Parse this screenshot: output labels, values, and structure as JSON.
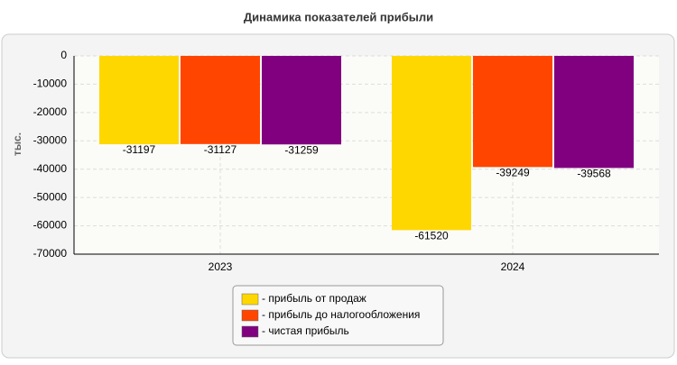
{
  "chart_data": {
    "type": "bar",
    "title": "Динамика показателей прибыли",
    "y_label": "тыс.",
    "categories": [
      "2023",
      "2024"
    ],
    "series": [
      {
        "name": "- прибыль от продаж",
        "color": "#ffd700",
        "values": [
          -31197,
          -61520
        ]
      },
      {
        "name": "- прибыль до налогообложения",
        "color": "#ff4500",
        "values": [
          -31127,
          -39249
        ]
      },
      {
        "name": "- чистая прибыль",
        "color": "#800080",
        "values": [
          -31259,
          -39568
        ]
      }
    ],
    "ylim": [
      -70000,
      0
    ],
    "yticks": [
      0,
      -10000,
      -20000,
      -30000,
      -40000,
      -50000,
      -60000,
      -70000
    ],
    "grid": true
  }
}
